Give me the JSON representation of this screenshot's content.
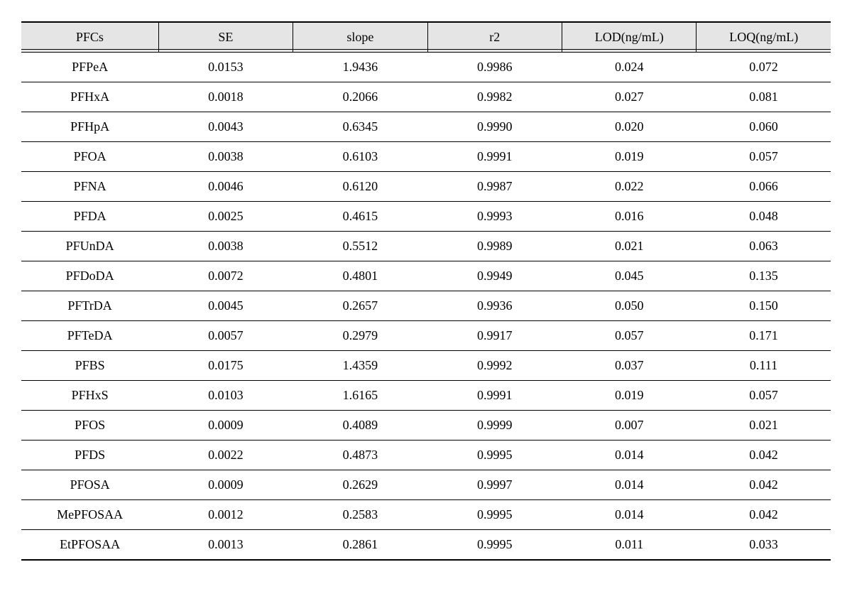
{
  "table": {
    "header_bg": "#e5e5e5",
    "border_color": "#000000",
    "background_color": "#ffffff",
    "font_family": "Times New Roman",
    "font_size_pt": 13,
    "columns": [
      {
        "key": "pfcs",
        "label": "PFCs",
        "align": "center",
        "width_pct": 17
      },
      {
        "key": "se",
        "label": "SE",
        "align": "center",
        "width_pct": 16.6
      },
      {
        "key": "slope",
        "label": "slope",
        "align": "center",
        "width_pct": 16.6
      },
      {
        "key": "r2",
        "label": "r2",
        "align": "center",
        "width_pct": 16.6
      },
      {
        "key": "lod",
        "label": "LOD(ng/mL)",
        "align": "center",
        "width_pct": 16.6
      },
      {
        "key": "loq",
        "label": "LOQ(ng/mL)",
        "align": "center",
        "width_pct": 16.6
      }
    ],
    "rows": [
      {
        "pfcs": "PFPeA",
        "se": "0.0153",
        "slope": "1.9436",
        "r2": "0.9986",
        "lod": "0.024",
        "loq": "0.072"
      },
      {
        "pfcs": "PFHxA",
        "se": "0.0018",
        "slope": "0.2066",
        "r2": "0.9982",
        "lod": "0.027",
        "loq": "0.081"
      },
      {
        "pfcs": "PFHpA",
        "se": "0.0043",
        "slope": "0.6345",
        "r2": "0.9990",
        "lod": "0.020",
        "loq": "0.060"
      },
      {
        "pfcs": "PFOA",
        "se": "0.0038",
        "slope": "0.6103",
        "r2": "0.9991",
        "lod": "0.019",
        "loq": "0.057"
      },
      {
        "pfcs": "PFNA",
        "se": "0.0046",
        "slope": "0.6120",
        "r2": "0.9987",
        "lod": "0.022",
        "loq": "0.066"
      },
      {
        "pfcs": "PFDA",
        "se": "0.0025",
        "slope": "0.4615",
        "r2": "0.9993",
        "lod": "0.016",
        "loq": "0.048"
      },
      {
        "pfcs": "PFUnDA",
        "se": "0.0038",
        "slope": "0.5512",
        "r2": "0.9989",
        "lod": "0.021",
        "loq": "0.063"
      },
      {
        "pfcs": "PFDoDA",
        "se": "0.0072",
        "slope": "0.4801",
        "r2": "0.9949",
        "lod": "0.045",
        "loq": "0.135"
      },
      {
        "pfcs": "PFTrDA",
        "se": "0.0045",
        "slope": "0.2657",
        "r2": "0.9936",
        "lod": "0.050",
        "loq": "0.150"
      },
      {
        "pfcs": "PFTeDA",
        "se": "0.0057",
        "slope": "0.2979",
        "r2": "0.9917",
        "lod": "0.057",
        "loq": "0.171"
      },
      {
        "pfcs": "PFBS",
        "se": "0.0175",
        "slope": "1.4359",
        "r2": "0.9992",
        "lod": "0.037",
        "loq": "0.111"
      },
      {
        "pfcs": "PFHxS",
        "se": "0.0103",
        "slope": "1.6165",
        "r2": "0.9991",
        "lod": "0.019",
        "loq": "0.057"
      },
      {
        "pfcs": "PFOS",
        "se": "0.0009",
        "slope": "0.4089",
        "r2": "0.9999",
        "lod": "0.007",
        "loq": "0.021"
      },
      {
        "pfcs": "PFDS",
        "se": "0.0022",
        "slope": "0.4873",
        "r2": "0.9995",
        "lod": "0.014",
        "loq": "0.042"
      },
      {
        "pfcs": "PFOSA",
        "se": "0.0009",
        "slope": "0.2629",
        "r2": "0.9997",
        "lod": "0.014",
        "loq": "0.042"
      },
      {
        "pfcs": "MePFOSAA",
        "se": "0.0012",
        "slope": "0.2583",
        "r2": "0.9995",
        "lod": "0.014",
        "loq": "0.042"
      },
      {
        "pfcs": "EtPFOSAA",
        "se": "0.0013",
        "slope": "0.2861",
        "r2": "0.9995",
        "lod": "0.011",
        "loq": "0.033"
      }
    ]
  }
}
